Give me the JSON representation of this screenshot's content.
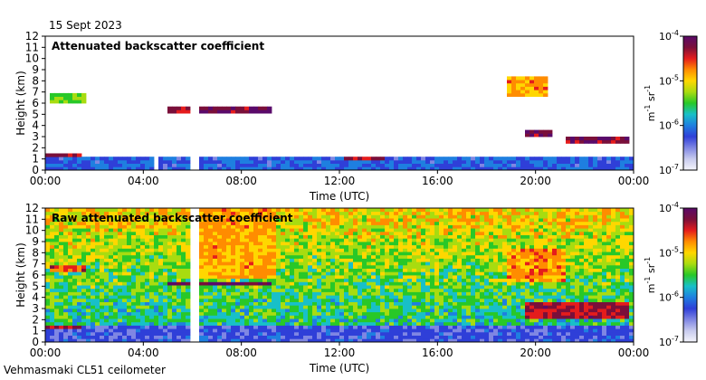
{
  "header": {
    "date": "15 Sept 2023"
  },
  "footer": {
    "instrument": "Vehmasmaki CL51 ceilometer"
  },
  "colors": {
    "scale": [
      "#f4f4fb",
      "#c8cbee",
      "#7f86e3",
      "#2f3fd8",
      "#1e7fe0",
      "#18c0c8",
      "#28c828",
      "#a8dc10",
      "#ffd700",
      "#ff8c00",
      "#e51c1c",
      "#7a0f3a",
      "#5a0a6a"
    ]
  },
  "chart_data": [
    {
      "type": "heatmap",
      "title": "Attenuated backscatter coefficient",
      "xlabel": "Time (UTC)",
      "ylabel": "Height (km)",
      "xlim": [
        0,
        24
      ],
      "ylim": [
        0,
        12
      ],
      "x_ticks": [
        "00:00",
        "04:00",
        "08:00",
        "12:00",
        "16:00",
        "20:00",
        "00:00"
      ],
      "y_ticks": [
        "0",
        "1",
        "2",
        "3",
        "4",
        "5",
        "6",
        "7",
        "8",
        "9",
        "10",
        "11",
        "12"
      ],
      "colorbar": {
        "scale": "log",
        "range": [
          1e-07,
          0.0001
        ],
        "units_label": "m",
        "units_exp": "-1",
        "units_label2": " sr",
        "units_exp2": "-1",
        "ticks": [
          {
            "base": "10",
            "exp": "-7",
            "value": -7
          },
          {
            "base": "10",
            "exp": "-6",
            "value": -6
          },
          {
            "base": "10",
            "exp": "-5",
            "value": -5
          },
          {
            "base": "10",
            "exp": "-4",
            "value": -4
          }
        ]
      },
      "data_gaps_hours": [
        [
          4.5,
          4.7
        ],
        [
          6.0,
          6.3
        ]
      ],
      "layers": [
        {
          "name": "boundary-layer",
          "t0": 0.0,
          "t1": 24.0,
          "h0": 0.0,
          "h1": 1.2,
          "level": 0.3
        },
        {
          "name": "low-cloud-early",
          "t0": 0.0,
          "t1": 1.5,
          "h0": 1.1,
          "h1": 1.4,
          "level": 0.85
        },
        {
          "name": "upper-cloud-morning",
          "t0": 0.1,
          "t1": 1.6,
          "h0": 5.9,
          "h1": 7.0,
          "level": 0.55
        },
        {
          "name": "cloud-05h",
          "t0": 5.0,
          "t1": 6.0,
          "h0": 5.1,
          "h1": 5.6,
          "level": 0.85
        },
        {
          "name": "cloud-day",
          "t0": 6.3,
          "t1": 9.3,
          "h0": 5.0,
          "h1": 5.6,
          "level": 0.9
        },
        {
          "name": "low-cloud-midday",
          "t0": 12.2,
          "t1": 13.9,
          "h0": 1.0,
          "h1": 1.3,
          "level": 0.85
        },
        {
          "name": "cloud-evening-3k",
          "t0": 19.6,
          "t1": 20.6,
          "h0": 3.0,
          "h1": 3.5,
          "level": 0.9
        },
        {
          "name": "cloud-evening-2k",
          "t0": 21.2,
          "t1": 23.9,
          "h0": 2.3,
          "h1": 2.9,
          "level": 0.9
        },
        {
          "name": "cloud-evening-7k",
          "t0": 18.8,
          "t1": 20.5,
          "h0": 6.6,
          "h1": 8.3,
          "level": 0.7
        }
      ]
    },
    {
      "type": "heatmap",
      "title": "Raw attenuated backscatter coefficient",
      "xlabel": "Time (UTC)",
      "ylabel": "Height (km)",
      "xlim": [
        0,
        24
      ],
      "ylim": [
        0,
        12
      ],
      "x_ticks": [
        "00:00",
        "04:00",
        "08:00",
        "12:00",
        "16:00",
        "20:00",
        "00:00"
      ],
      "y_ticks": [
        "0",
        "1",
        "2",
        "3",
        "4",
        "5",
        "6",
        "7",
        "8",
        "9",
        "10",
        "11",
        "12"
      ],
      "colorbar": {
        "scale": "log",
        "range": [
          1e-07,
          0.0001
        ],
        "units_label": "m",
        "units_exp": "-1",
        "units_label2": " sr",
        "units_exp2": "-1",
        "ticks": [
          {
            "base": "10",
            "exp": "-7",
            "value": -7
          },
          {
            "base": "10",
            "exp": "-6",
            "value": -6
          },
          {
            "base": "10",
            "exp": "-5",
            "value": -5
          },
          {
            "base": "10",
            "exp": "-4",
            "value": -4
          }
        ]
      },
      "data_gaps_hours": [
        [
          6.0,
          6.3
        ]
      ],
      "layers": [
        {
          "name": "boundary-layer",
          "t0": 0.0,
          "t1": 24.0,
          "h0": 0.0,
          "h1": 1.5,
          "level": 0.25
        },
        {
          "name": "high-signal-morning",
          "t0": 6.3,
          "t1": 9.4,
          "h0": 5.6,
          "h1": 12.0,
          "level": 0.7
        },
        {
          "name": "cloud-day",
          "t0": 5.0,
          "t1": 9.3,
          "h0": 5.0,
          "h1": 5.5,
          "level": 0.92
        },
        {
          "name": "upper-cloud-morning",
          "t0": 0.2,
          "t1": 1.6,
          "h0": 6.3,
          "h1": 7.0,
          "level": 0.8
        },
        {
          "name": "low-cloud-early",
          "t0": 0.0,
          "t1": 1.5,
          "h0": 1.1,
          "h1": 1.4,
          "level": 0.85
        },
        {
          "name": "cloud-evening-7k",
          "t0": 18.9,
          "t1": 21.2,
          "h0": 5.5,
          "h1": 8.3,
          "level": 0.72
        },
        {
          "name": "cloud-evening-3k",
          "t0": 19.6,
          "t1": 23.9,
          "h0": 2.2,
          "h1": 3.5,
          "level": 0.85
        }
      ]
    }
  ]
}
